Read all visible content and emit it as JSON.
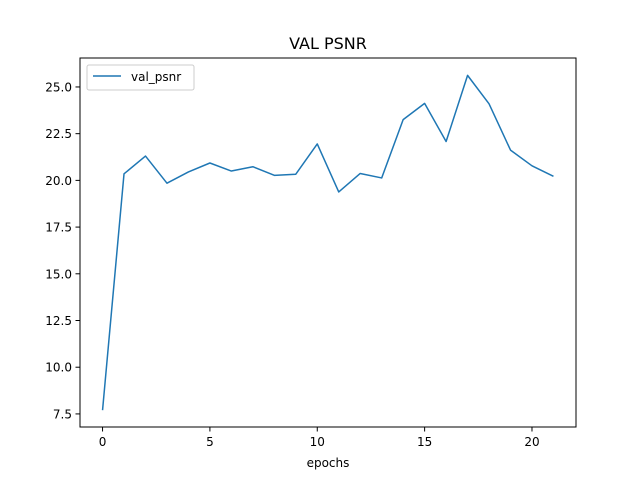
{
  "chart_data": {
    "type": "line",
    "title": "VAL PSNR",
    "xlabel": "epochs",
    "ylabel": "",
    "xlim": [
      -1.05,
      22.05
    ],
    "ylim": [
      6.8,
      26.55
    ],
    "xticks": [
      0,
      5,
      10,
      15,
      20
    ],
    "xtick_labels": [
      "0",
      "5",
      "10",
      "15",
      "20"
    ],
    "yticks": [
      7.5,
      10.0,
      12.5,
      15.0,
      17.5,
      20.0,
      22.5,
      25.0
    ],
    "ytick_labels": [
      "7.5",
      "10.0",
      "12.5",
      "15.0",
      "17.5",
      "20.0",
      "22.5",
      "25.0"
    ],
    "grid": false,
    "legend_position": "top-left",
    "series": [
      {
        "name": "val_psnr",
        "color": "#1f77b4",
        "x": [
          0,
          1,
          2,
          3,
          4,
          5,
          6,
          7,
          8,
          9,
          10,
          11,
          12,
          13,
          14,
          15,
          16,
          17,
          18,
          19,
          20,
          21
        ],
        "y": [
          7.7,
          20.35,
          21.3,
          19.85,
          20.45,
          20.93,
          20.5,
          20.73,
          20.27,
          20.33,
          21.95,
          19.38,
          20.37,
          20.13,
          23.25,
          24.12,
          22.08,
          25.62,
          24.1,
          21.62,
          20.78,
          20.22
        ]
      }
    ]
  }
}
